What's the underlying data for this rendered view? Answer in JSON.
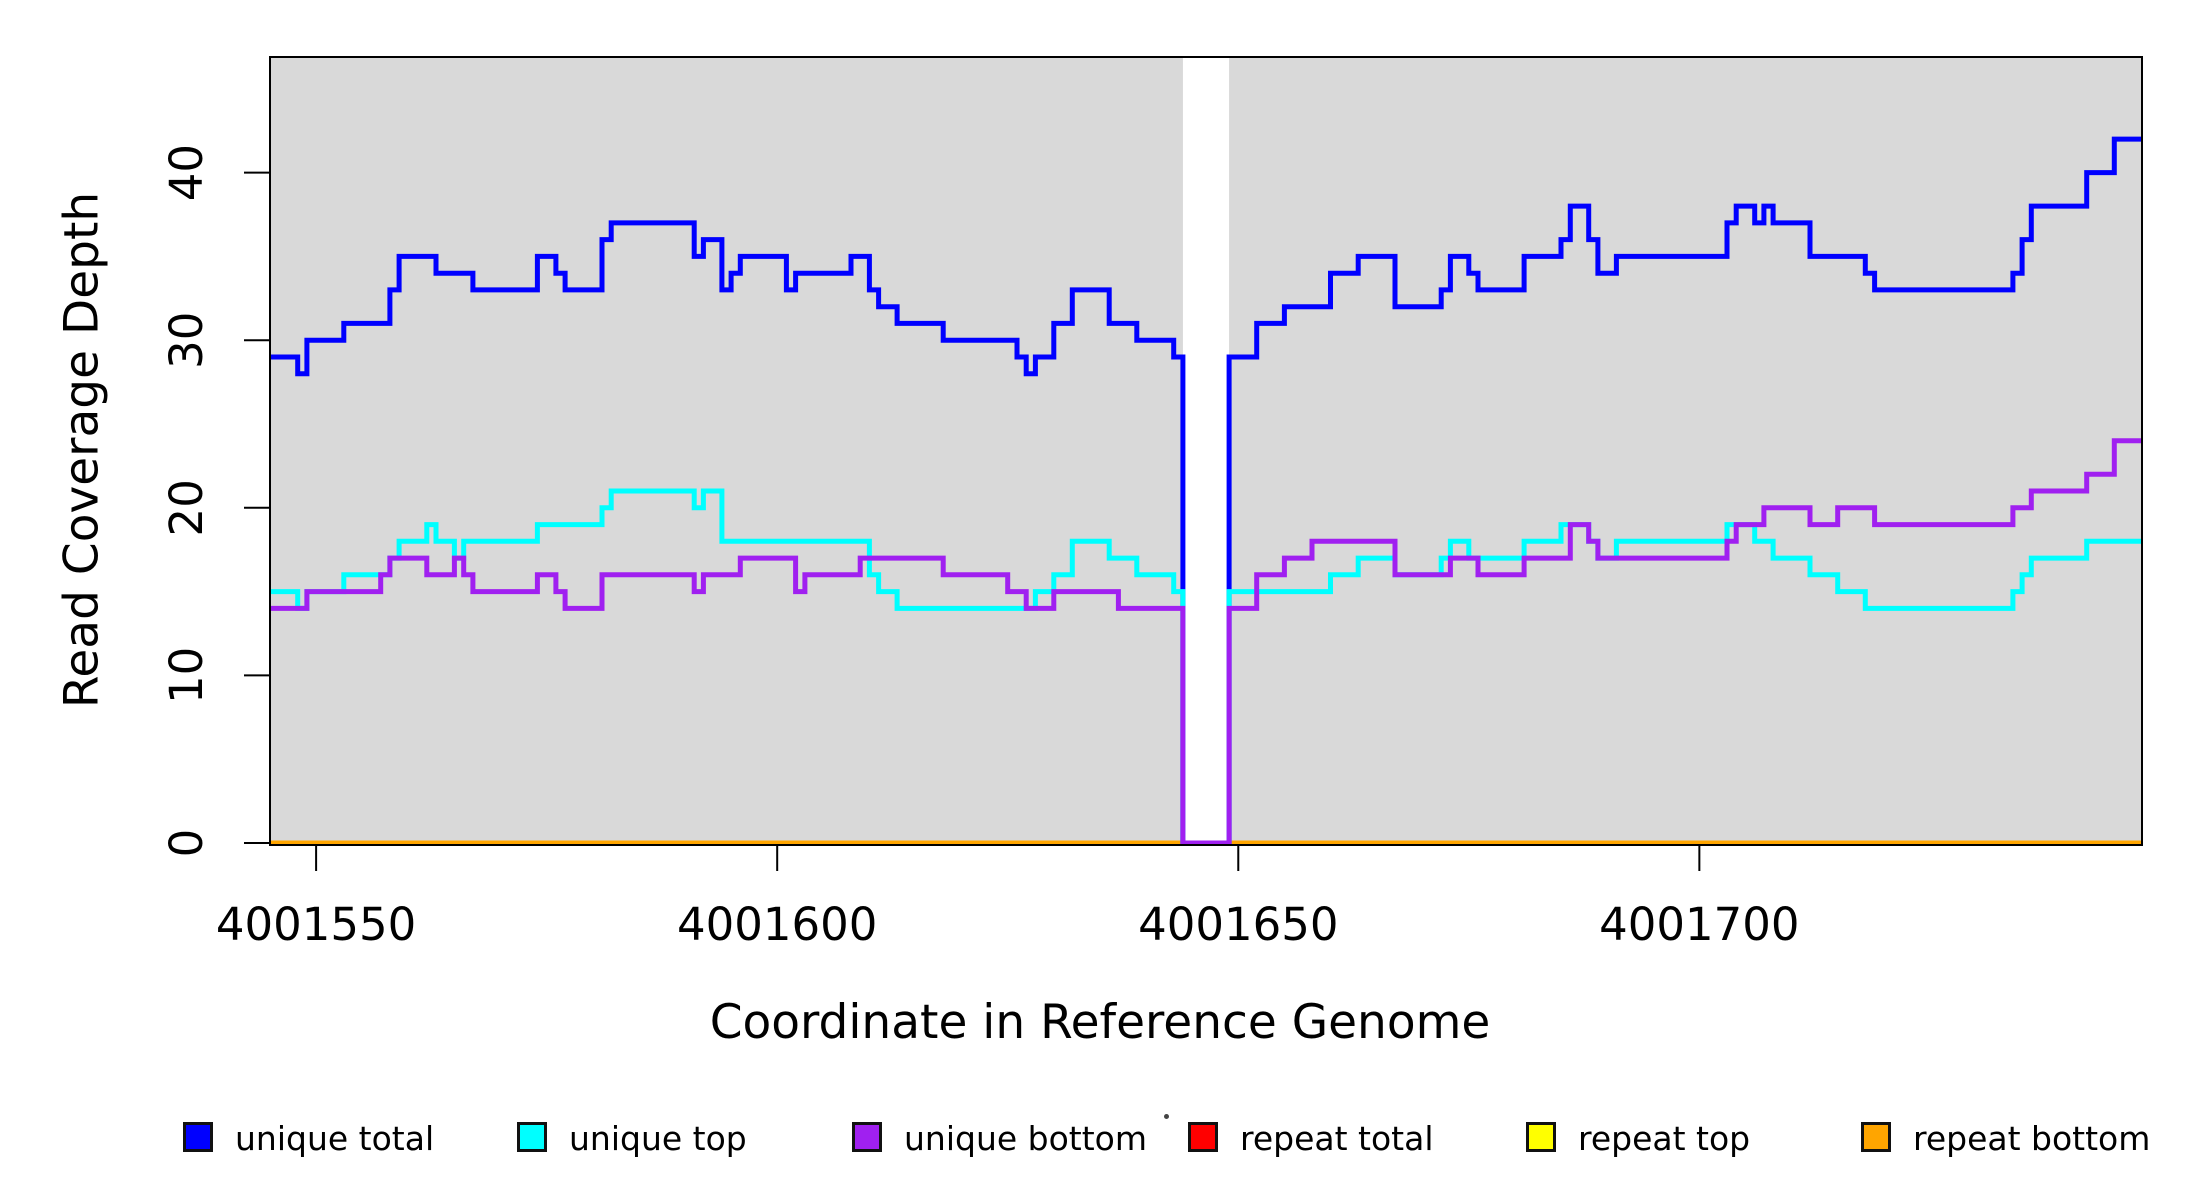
{
  "figure": {
    "xlabel": "Coordinate in Reference Genome",
    "ylabel": "Read Coverage Depth",
    "background_color": "#ffffff",
    "panel_color": "#d9d9d9",
    "axis_color": "#000000"
  },
  "legend": {
    "items": [
      {
        "label": "unique total",
        "color": "#0000ff"
      },
      {
        "label": "unique top",
        "color": "#00ffff"
      },
      {
        "label": "unique bottom",
        "color": "#a020f0"
      },
      {
        "label": "repeat total",
        "color": "#ff0000"
      },
      {
        "label": "repeat top",
        "color": "#ffff00"
      },
      {
        "label": "repeat bottom",
        "color": "#ffa500"
      }
    ]
  },
  "chart_data": {
    "type": "line",
    "step": true,
    "title": "",
    "xlabel": "Coordinate in Reference Genome",
    "ylabel": "Read Coverage Depth",
    "x_ticks": [
      4001550,
      4001600,
      4001650,
      4001700
    ],
    "y_ticks": [
      0,
      10,
      20,
      30,
      40
    ],
    "x_range": [
      4001545,
      4001748
    ],
    "y_range": [
      0,
      47
    ],
    "grid": false,
    "legend_position": "bottom",
    "coverage_gap": {
      "x_start": 4001644,
      "x_end": 4001649,
      "note": "white band, all unique series drop to 0"
    },
    "series": [
      {
        "name": "repeat total",
        "color": "#ff0000",
        "points": [
          [
            4001545,
            0
          ]
        ]
      },
      {
        "name": "repeat top",
        "color": "#ffff00",
        "points": [
          [
            4001545,
            0
          ]
        ]
      },
      {
        "name": "repeat bottom",
        "color": "#ffa500",
        "points": [
          [
            4001545,
            0
          ]
        ]
      },
      {
        "name": "unique total",
        "color": "#0000ff",
        "points": [
          [
            4001545,
            29
          ],
          [
            4001548,
            28
          ],
          [
            4001549,
            30
          ],
          [
            4001553,
            31
          ],
          [
            4001558,
            33
          ],
          [
            4001559,
            35
          ],
          [
            4001563,
            34
          ],
          [
            4001567,
            33
          ],
          [
            4001574,
            35
          ],
          [
            4001576,
            34
          ],
          [
            4001577,
            33
          ],
          [
            4001581,
            36
          ],
          [
            4001582,
            37
          ],
          [
            4001591,
            35
          ],
          [
            4001592,
            36
          ],
          [
            4001594,
            33
          ],
          [
            4001595,
            34
          ],
          [
            4001596,
            35
          ],
          [
            4001601,
            33
          ],
          [
            4001602,
            34
          ],
          [
            4001608,
            35
          ],
          [
            4001610,
            33
          ],
          [
            4001611,
            32
          ],
          [
            4001613,
            31
          ],
          [
            4001618,
            30
          ],
          [
            4001626,
            29
          ],
          [
            4001627,
            28
          ],
          [
            4001628,
            29
          ],
          [
            4001630,
            31
          ],
          [
            4001632,
            33
          ],
          [
            4001636,
            31
          ],
          [
            4001639,
            30
          ],
          [
            4001643,
            29
          ],
          [
            4001644,
            0
          ],
          [
            4001649,
            29
          ],
          [
            4001652,
            31
          ],
          [
            4001655,
            32
          ],
          [
            4001660,
            34
          ],
          [
            4001663,
            35
          ],
          [
            4001667,
            32
          ],
          [
            4001672,
            33
          ],
          [
            4001673,
            35
          ],
          [
            4001675,
            34
          ],
          [
            4001676,
            33
          ],
          [
            4001681,
            35
          ],
          [
            4001685,
            36
          ],
          [
            4001686,
            38
          ],
          [
            4001688,
            36
          ],
          [
            4001689,
            34
          ],
          [
            4001691,
            35
          ],
          [
            4001703,
            37
          ],
          [
            4001704,
            38
          ],
          [
            4001706,
            37
          ],
          [
            4001707,
            38
          ],
          [
            4001708,
            37
          ],
          [
            4001712,
            35
          ],
          [
            4001718,
            34
          ],
          [
            4001719,
            33
          ],
          [
            4001734,
            34
          ],
          [
            4001735,
            36
          ],
          [
            4001736,
            38
          ],
          [
            4001742,
            40
          ],
          [
            4001745,
            42
          ]
        ]
      },
      {
        "name": "unique top",
        "color": "#00ffff",
        "points": [
          [
            4001545,
            15
          ],
          [
            4001548,
            14
          ],
          [
            4001549,
            15
          ],
          [
            4001553,
            16
          ],
          [
            4001558,
            17
          ],
          [
            4001559,
            18
          ],
          [
            4001562,
            19
          ],
          [
            4001563,
            18
          ],
          [
            4001565,
            17
          ],
          [
            4001566,
            18
          ],
          [
            4001574,
            19
          ],
          [
            4001581,
            20
          ],
          [
            4001582,
            21
          ],
          [
            4001591,
            20
          ],
          [
            4001592,
            21
          ],
          [
            4001594,
            18
          ],
          [
            4001610,
            16
          ],
          [
            4001611,
            15
          ],
          [
            4001613,
            14
          ],
          [
            4001628,
            15
          ],
          [
            4001630,
            16
          ],
          [
            4001632,
            18
          ],
          [
            4001636,
            17
          ],
          [
            4001639,
            16
          ],
          [
            4001643,
            15
          ],
          [
            4001644,
            0
          ],
          [
            4001649,
            15
          ],
          [
            4001660,
            16
          ],
          [
            4001663,
            17
          ],
          [
            4001667,
            16
          ],
          [
            4001672,
            17
          ],
          [
            4001673,
            18
          ],
          [
            4001675,
            17
          ],
          [
            4001681,
            18
          ],
          [
            4001685,
            19
          ],
          [
            4001688,
            18
          ],
          [
            4001689,
            17
          ],
          [
            4001691,
            18
          ],
          [
            4001703,
            19
          ],
          [
            4001706,
            18
          ],
          [
            4001708,
            17
          ],
          [
            4001712,
            16
          ],
          [
            4001715,
            15
          ],
          [
            4001718,
            14
          ],
          [
            4001734,
            15
          ],
          [
            4001735,
            16
          ],
          [
            4001736,
            17
          ],
          [
            4001742,
            18
          ]
        ]
      },
      {
        "name": "unique bottom",
        "color": "#a020f0",
        "points": [
          [
            4001545,
            14
          ],
          [
            4001549,
            15
          ],
          [
            4001557,
            16
          ],
          [
            4001558,
            17
          ],
          [
            4001562,
            16
          ],
          [
            4001565,
            17
          ],
          [
            4001566,
            16
          ],
          [
            4001567,
            15
          ],
          [
            4001574,
            16
          ],
          [
            4001576,
            15
          ],
          [
            4001577,
            14
          ],
          [
            4001581,
            16
          ],
          [
            4001591,
            15
          ],
          [
            4001592,
            16
          ],
          [
            4001596,
            17
          ],
          [
            4001602,
            15
          ],
          [
            4001603,
            16
          ],
          [
            4001609,
            17
          ],
          [
            4001618,
            16
          ],
          [
            4001625,
            15
          ],
          [
            4001627,
            14
          ],
          [
            4001630,
            15
          ],
          [
            4001637,
            14
          ],
          [
            4001644,
            0
          ],
          [
            4001649,
            14
          ],
          [
            4001652,
            16
          ],
          [
            4001655,
            17
          ],
          [
            4001658,
            18
          ],
          [
            4001667,
            16
          ],
          [
            4001673,
            17
          ],
          [
            4001676,
            16
          ],
          [
            4001681,
            17
          ],
          [
            4001686,
            19
          ],
          [
            4001688,
            18
          ],
          [
            4001689,
            17
          ],
          [
            4001703,
            18
          ],
          [
            4001704,
            19
          ],
          [
            4001707,
            20
          ],
          [
            4001712,
            19
          ],
          [
            4001715,
            20
          ],
          [
            4001719,
            19
          ],
          [
            4001734,
            20
          ],
          [
            4001736,
            21
          ],
          [
            4001742,
            22
          ],
          [
            4001745,
            24
          ]
        ]
      }
    ]
  }
}
